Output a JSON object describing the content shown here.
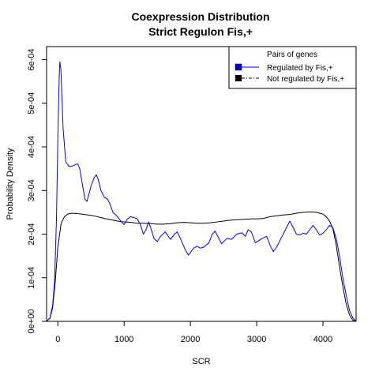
{
  "chart_data": {
    "type": "line",
    "title": "Coexpression Distribution",
    "subtitle": "Strict Regulon Fis,+",
    "xlabel": "SCR",
    "ylabel": "Probability Density",
    "xlim": [
      -170,
      4500
    ],
    "ylim": [
      0,
      0.00063
    ],
    "x_ticks": [
      0,
      1000,
      2000,
      3000,
      4000
    ],
    "x_tick_labels": [
      "0",
      "1000",
      "2000",
      "3000",
      "4000"
    ],
    "y_ticks": [
      0,
      0.0001,
      0.0002,
      0.0003,
      0.0004,
      0.0005,
      0.0006
    ],
    "y_tick_labels": [
      "0e+00",
      "1e-04",
      "2e-04",
      "3e-04",
      "4e-04",
      "5e-04",
      "6e-04"
    ],
    "grid": false,
    "legend": {
      "title": "Pairs of genes",
      "placement": "top-right",
      "entries": [
        "Regulated by  Fis,+",
        "Not regulated by  Fis,+"
      ]
    },
    "series": [
      {
        "name": "Regulated by  Fis,+",
        "color": "#0000ff",
        "line_style": "solid",
        "points": [
          [
            -170,
            0.0
          ],
          [
            -120,
            8e-06
          ],
          [
            -80,
            3.5e-05
          ],
          [
            -50,
            9e-05
          ],
          [
            -20,
            0.00024
          ],
          [
            0,
            0.00042
          ],
          [
            20,
            0.00056
          ],
          [
            30,
            0.000595
          ],
          [
            45,
            0.00058
          ],
          [
            80,
            0.00044
          ],
          [
            120,
            0.000365
          ],
          [
            170,
            0.000355
          ],
          [
            220,
            0.000356
          ],
          [
            270,
            0.00036
          ],
          [
            300,
            0.000361
          ],
          [
            330,
            0.00035
          ],
          [
            380,
            0.000305
          ],
          [
            410,
            0.00028
          ],
          [
            440,
            0.000275
          ],
          [
            500,
            0.00031
          ],
          [
            550,
            0.00033
          ],
          [
            580,
            0.000336
          ],
          [
            610,
            0.000325
          ],
          [
            650,
            0.0003
          ],
          [
            700,
            0.000285
          ],
          [
            750,
            0.00028
          ],
          [
            790,
            0.000268
          ],
          [
            830,
            0.00025
          ],
          [
            900,
            0.00024
          ],
          [
            960,
            0.000228
          ],
          [
            1000,
            0.000222
          ],
          [
            1050,
            0.000235
          ],
          [
            1100,
            0.00024
          ],
          [
            1150,
            0.000238
          ],
          [
            1200,
            0.000235
          ],
          [
            1250,
            0.00022
          ],
          [
            1290,
            0.0002
          ],
          [
            1330,
            0.00021
          ],
          [
            1370,
            0.000228
          ],
          [
            1400,
            0.000215
          ],
          [
            1450,
            0.00019
          ],
          [
            1500,
            0.000183
          ],
          [
            1550,
            0.000195
          ],
          [
            1620,
            0.000205
          ],
          [
            1700,
            0.000188
          ],
          [
            1760,
            0.0002
          ],
          [
            1800,
            0.000205
          ],
          [
            1850,
            0.00019
          ],
          [
            1920,
            0.000165
          ],
          [
            1970,
            0.000152
          ],
          [
            2000,
            0.000158
          ],
          [
            2050,
            0.000168
          ],
          [
            2100,
            0.000172
          ],
          [
            2150,
            0.000168
          ],
          [
            2200,
            0.00017
          ],
          [
            2280,
            0.00018
          ],
          [
            2330,
            0.0002
          ],
          [
            2370,
            0.000207
          ],
          [
            2420,
            0.000193
          ],
          [
            2470,
            0.000178
          ],
          [
            2550,
            0.00019
          ],
          [
            2620,
            0.000188
          ],
          [
            2700,
            0.0002
          ],
          [
            2780,
            0.000203
          ],
          [
            2830,
            0.000195
          ],
          [
            2870,
            0.00021
          ],
          [
            2920,
            0.000205
          ],
          [
            2980,
            0.00018
          ],
          [
            3030,
            0.000185
          ],
          [
            3080,
            0.00019
          ],
          [
            3150,
            0.000195
          ],
          [
            3200,
            0.000175
          ],
          [
            3250,
            0.00016
          ],
          [
            3300,
            0.00017
          ],
          [
            3350,
            0.000185
          ],
          [
            3400,
            0.0002
          ],
          [
            3450,
            0.000215
          ],
          [
            3500,
            0.00023
          ],
          [
            3550,
            0.000215
          ],
          [
            3600,
            0.0002
          ],
          [
            3650,
            0.000198
          ],
          [
            3700,
            0.000202
          ],
          [
            3750,
            0.0002
          ],
          [
            3800,
            0.00021
          ],
          [
            3850,
            0.00022
          ],
          [
            3900,
            0.00021
          ],
          [
            3950,
            0.000198
          ],
          [
            4000,
            0.000202
          ],
          [
            4050,
            0.00021
          ],
          [
            4100,
            0.00022
          ],
          [
            4150,
            0.000215
          ],
          [
            4200,
            0.00019
          ],
          [
            4250,
            0.00015
          ],
          [
            4300,
            0.0001
          ],
          [
            4350,
            6e-05
          ],
          [
            4400,
            2.5e-05
          ],
          [
            4450,
            8e-06
          ],
          [
            4500,
            0.0
          ]
        ]
      },
      {
        "name": "Not regulated by  Fis,+",
        "color": "#000000",
        "line_style": "solid",
        "points": [
          [
            -170,
            0.0
          ],
          [
            -120,
            7e-06
          ],
          [
            -80,
            3e-05
          ],
          [
            -40,
            9e-05
          ],
          [
            0,
            0.00017
          ],
          [
            50,
            0.000225
          ],
          [
            100,
            0.00024
          ],
          [
            150,
            0.000246
          ],
          [
            200,
            0.000248
          ],
          [
            300,
            0.000247
          ],
          [
            400,
            0.000245
          ],
          [
            500,
            0.000243
          ],
          [
            600,
            0.00024
          ],
          [
            700,
            0.000236
          ],
          [
            800,
            0.000233
          ],
          [
            900,
            0.00023
          ],
          [
            1000,
            0.000228
          ],
          [
            1100,
            0.000227
          ],
          [
            1200,
            0.000225
          ],
          [
            1300,
            0.000225
          ],
          [
            1400,
            0.000224
          ],
          [
            1500,
            0.000223
          ],
          [
            1600,
            0.000223
          ],
          [
            1700,
            0.000224
          ],
          [
            1800,
            0.000226
          ],
          [
            1900,
            0.000227
          ],
          [
            2000,
            0.000226
          ],
          [
            2100,
            0.000225
          ],
          [
            2200,
            0.000225
          ],
          [
            2300,
            0.000226
          ],
          [
            2400,
            0.000228
          ],
          [
            2500,
            0.00023
          ],
          [
            2600,
            0.000232
          ],
          [
            2700,
            0.000233
          ],
          [
            2800,
            0.000234
          ],
          [
            2900,
            0.000235
          ],
          [
            3000,
            0.000235
          ],
          [
            3100,
            0.000236
          ],
          [
            3200,
            0.00024
          ],
          [
            3300,
            0.000242
          ],
          [
            3400,
            0.000244
          ],
          [
            3500,
            0.000245
          ],
          [
            3600,
            0.000248
          ],
          [
            3700,
            0.00025
          ],
          [
            3800,
            0.000251
          ],
          [
            3900,
            0.00025
          ],
          [
            4000,
            0.000246
          ],
          [
            4050,
            0.00024
          ],
          [
            4100,
            0.00023
          ],
          [
            4150,
            0.000212
          ],
          [
            4200,
            0.000175
          ],
          [
            4250,
            0.000125
          ],
          [
            4300,
            8e-05
          ],
          [
            4350,
            4e-05
          ],
          [
            4400,
            1.5e-05
          ],
          [
            4450,
            3e-06
          ],
          [
            4500,
            0.0
          ]
        ]
      }
    ]
  }
}
